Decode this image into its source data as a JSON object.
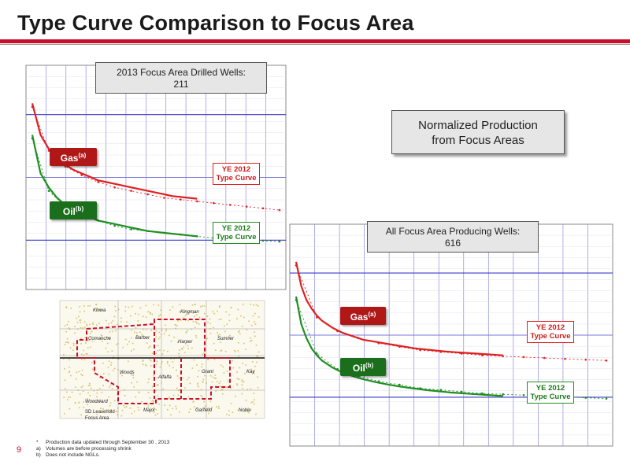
{
  "slide": {
    "title": "Type Curve Comparison to Focus Area",
    "page_number": "9"
  },
  "colors": {
    "accent": "#c8102e",
    "gas": "#e02020",
    "oil": "#1f8f1f",
    "grid": "#3a3acc"
  },
  "chart_data": [
    {
      "type": "line",
      "name_box": {
        "line1": "2013 Focus Area Drilled Wells:",
        "line2": "211"
      },
      "series": [
        {
          "name": "Gas",
          "superscript": "(a)",
          "x": [
            0,
            1,
            2,
            3,
            4,
            5,
            6,
            7,
            8,
            9,
            10,
            11,
            12,
            13,
            14,
            15,
            16,
            17,
            18,
            19,
            20
          ],
          "y": [
            1.0,
            0.82,
            0.74,
            0.69,
            0.65,
            0.62,
            0.6,
            0.58,
            0.56,
            0.55,
            0.54,
            0.53,
            0.52,
            0.51,
            0.5,
            0.49,
            0.48,
            0.47,
            0.465,
            0.46,
            0.455
          ]
        },
        {
          "name": "YE 2012 Type Curve (Gas)",
          "x": [
            0,
            2,
            4,
            6,
            8,
            10,
            12,
            14,
            16,
            18,
            20,
            22,
            24,
            26,
            28,
            30
          ],
          "y": [
            0.98,
            0.73,
            0.64,
            0.59,
            0.55,
            0.52,
            0.5,
            0.48,
            0.46,
            0.45,
            0.44,
            0.43,
            0.42,
            0.41,
            0.4,
            0.39
          ]
        },
        {
          "name": "Oil",
          "superscript": "(b)",
          "x": [
            0,
            1,
            2,
            3,
            4,
            5,
            6,
            7,
            8,
            9,
            10,
            11,
            12,
            13,
            14,
            15,
            16,
            17,
            18,
            19,
            20
          ],
          "y": [
            0.82,
            0.6,
            0.52,
            0.46,
            0.42,
            0.39,
            0.37,
            0.35,
            0.33,
            0.32,
            0.31,
            0.3,
            0.29,
            0.28,
            0.27,
            0.265,
            0.26,
            0.255,
            0.25,
            0.245,
            0.24
          ]
        },
        {
          "name": "YE 2012 Type Curve (Oil)",
          "x": [
            0,
            2,
            4,
            6,
            8,
            10,
            12,
            14,
            16,
            18,
            20,
            22,
            24,
            26,
            28,
            30
          ],
          "y": [
            0.8,
            0.5,
            0.41,
            0.36,
            0.33,
            0.3,
            0.28,
            0.27,
            0.26,
            0.25,
            0.24,
            0.23,
            0.225,
            0.22,
            0.215,
            0.21
          ]
        }
      ]
    },
    {
      "type": "line",
      "name_box": {
        "line1": "All Focus Area Producing Wells:",
        "line2": "616"
      },
      "series": [
        {
          "name": "Gas",
          "superscript": "(a)",
          "x": [
            0,
            1,
            2,
            3,
            4,
            5,
            6,
            7,
            8,
            9,
            10,
            11,
            12,
            13,
            14,
            15,
            16,
            17,
            18,
            19,
            20,
            21,
            22,
            23,
            24,
            25,
            26,
            27,
            28,
            29,
            30,
            31,
            32,
            33,
            34,
            35,
            36,
            37,
            38,
            39,
            40
          ],
          "y": [
            1.0,
            0.86,
            0.78,
            0.73,
            0.69,
            0.66,
            0.64,
            0.62,
            0.605,
            0.59,
            0.58,
            0.57,
            0.56,
            0.55,
            0.545,
            0.54,
            0.535,
            0.53,
            0.525,
            0.52,
            0.515,
            0.51,
            0.505,
            0.5,
            0.497,
            0.494,
            0.491,
            0.488,
            0.485,
            0.482,
            0.48,
            0.478,
            0.476,
            0.474,
            0.472,
            0.47,
            0.468,
            0.466,
            0.464,
            0.462,
            0.46
          ]
        },
        {
          "name": "YE 2012 Type Curve (Gas)",
          "x": [
            0,
            4,
            8,
            12,
            16,
            20,
            24,
            28,
            32,
            36,
            40,
            44,
            48,
            52,
            56,
            60
          ],
          "y": [
            0.98,
            0.68,
            0.6,
            0.56,
            0.53,
            0.51,
            0.49,
            0.48,
            0.47,
            0.46,
            0.455,
            0.45,
            0.445,
            0.44,
            0.435,
            0.43
          ]
        },
        {
          "name": "Oil",
          "superscript": "(b)",
          "x": [
            0,
            1,
            2,
            3,
            4,
            5,
            6,
            7,
            8,
            9,
            10,
            11,
            12,
            13,
            14,
            15,
            16,
            17,
            18,
            19,
            20,
            21,
            22,
            23,
            24,
            25,
            26,
            27,
            28,
            29,
            30,
            31,
            32,
            33,
            34,
            35,
            36,
            37,
            38,
            39,
            40
          ],
          "y": [
            0.8,
            0.64,
            0.56,
            0.5,
            0.46,
            0.43,
            0.41,
            0.39,
            0.375,
            0.36,
            0.35,
            0.34,
            0.33,
            0.322,
            0.315,
            0.308,
            0.302,
            0.296,
            0.29,
            0.285,
            0.28,
            0.276,
            0.272,
            0.268,
            0.264,
            0.26,
            0.257,
            0.254,
            0.251,
            0.248,
            0.245,
            0.243,
            0.241,
            0.239,
            0.237,
            0.235,
            0.233,
            0.231,
            0.229,
            0.227,
            0.225
          ]
        },
        {
          "name": "YE 2012 Type Curve (Oil)",
          "x": [
            0,
            4,
            8,
            12,
            16,
            20,
            24,
            28,
            32,
            36,
            40,
            44,
            48,
            52,
            56,
            60
          ],
          "y": [
            0.78,
            0.47,
            0.38,
            0.34,
            0.31,
            0.29,
            0.27,
            0.26,
            0.25,
            0.24,
            0.235,
            0.23,
            0.225,
            0.22,
            0.215,
            0.21
          ]
        }
      ]
    }
  ],
  "labels": {
    "normalized": {
      "line1": "Normalized Production",
      "line2": "from Focus Areas"
    },
    "ye2012_line1": "YE 2012",
    "ye2012_line2": "Type Curve",
    "gas": "Gas",
    "gas_sup": "(a)",
    "oil": "Oil",
    "oil_sup": "(b)"
  },
  "map": {
    "counties": [
      "Kiowa",
      "Kingman",
      "Comanche",
      "Barber",
      "Harper",
      "Sumner",
      "Woods",
      "Alfalfa",
      "Grant",
      "Kay",
      "Woodward",
      "Major",
      "Garfield",
      "Noble"
    ],
    "legend": {
      "line1": "SD Leasehold",
      "line2": "Focus Area"
    }
  },
  "footnotes": [
    {
      "marker": "*",
      "text": "Production data updated through September 30 , 2013"
    },
    {
      "marker": "a)",
      "text": "Volumes are before processing shrink"
    },
    {
      "marker": "b)",
      "text": "Does not include NGLs."
    }
  ]
}
